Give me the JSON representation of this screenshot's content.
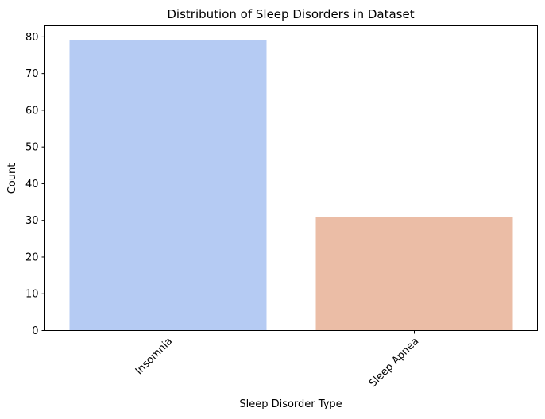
{
  "chart_data": {
    "type": "bar",
    "title": "Distribution of Sleep Disorders in Dataset",
    "xlabel": "Sleep Disorder Type",
    "ylabel": "Count",
    "categories": [
      "Insomnia",
      "Sleep Apnea"
    ],
    "values": [
      79,
      31
    ],
    "colors": [
      "#b5cbf3",
      "#ebbda6"
    ],
    "ylim": [
      0,
      83
    ],
    "yticks": [
      0,
      10,
      20,
      30,
      40,
      50,
      60,
      70,
      80
    ],
    "grid": false,
    "legend": "none",
    "xtick_rotation": 45
  }
}
